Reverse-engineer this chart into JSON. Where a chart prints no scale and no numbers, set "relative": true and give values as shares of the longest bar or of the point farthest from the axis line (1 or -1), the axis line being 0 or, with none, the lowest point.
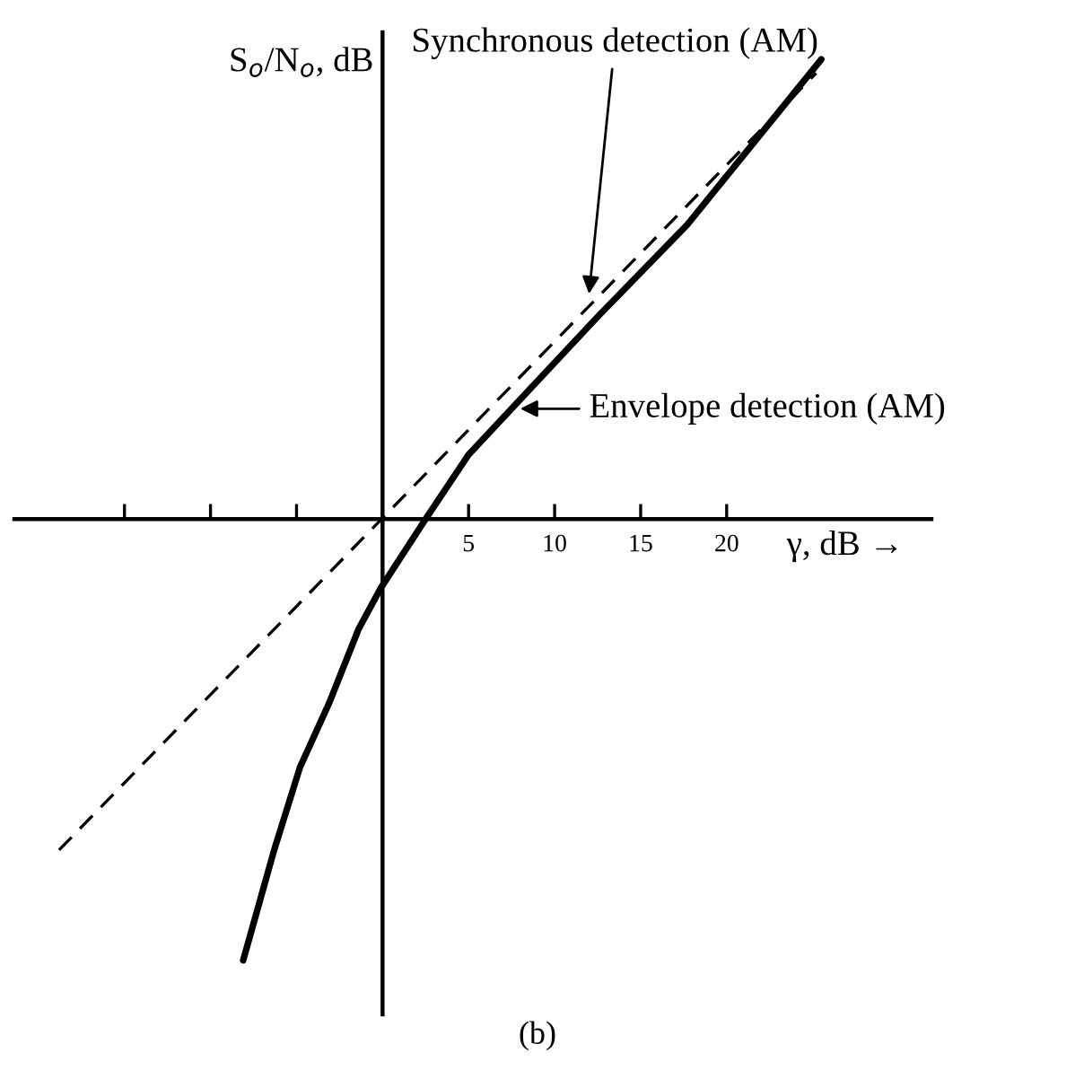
{
  "chart_data": {
    "type": "line",
    "relative": true,
    "xlabel": "γ, dB →",
    "ylabel": "S$_{o}$/N$_{o}$, dB",
    "xlim": [
      -21.4,
      31.9
    ],
    "xticks": [
      {
        "value": -15,
        "label": null
      },
      {
        "value": -10,
        "label": null
      },
      {
        "value": -5,
        "label": null
      },
      5,
      10,
      15,
      20
    ],
    "grid": false,
    "legend": false,
    "marker": "none",
    "series": [
      {
        "color": "#000000",
        "line_style": "dashed",
        "x": [
          -18.8,
          25.2
        ],
        "values": [
          -0.72,
          0.97
        ]
      },
      {
        "color": "#000000",
        "line_style": "solid",
        "x": [
          -8.1,
          -6.3,
          -4.8,
          -3.1,
          -1.4,
          -0.1,
          2.5,
          5.0,
          7.5,
          12.5,
          17.7,
          25.5
        ],
        "values": [
          -0.96,
          -0.72,
          -0.54,
          -0.4,
          -0.24,
          -0.15,
          0,
          0.14,
          0.24,
          0.44,
          0.64,
          1.0
        ]
      }
    ],
    "annotations": [
      {
        "text": "Synchronous detection (AM)",
        "x": 12.0,
        "y": 0.49
      },
      {
        "text": "Envelope detection (AM)",
        "x": 8.0,
        "y": 0.24
      },
      "(b)"
    ]
  }
}
